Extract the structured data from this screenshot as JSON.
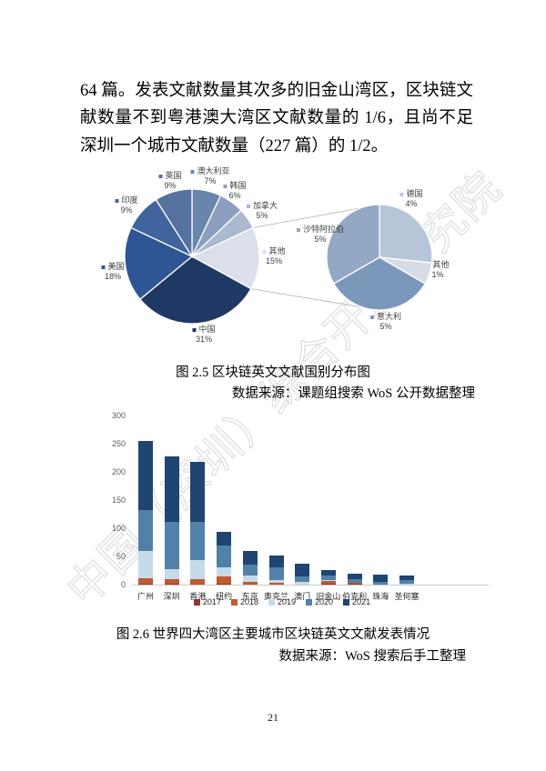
{
  "page": {
    "number": "21",
    "watermark": "中国（深圳）综合开发研究院",
    "paragraph": "64 篇。发表文献数量其次多的旧金山湾区，区块链文献数量不到粤港澳大湾区文献数量的 1/6，且尚不足深圳一个城市文献数量（227 篇）的 1/2。"
  },
  "figures": {
    "fig25": {
      "caption": "图 2.5 区块链英文文献国别分布图",
      "source": "数据来源：课题组搜索 WoS 公开数据整理"
    },
    "fig26": {
      "caption": "图 2.6 世界四大湾区主要城市区块链英文文献发表情况",
      "source": "数据来源：WoS 搜索后手工整理"
    }
  },
  "chart_data": [
    {
      "type": "pie",
      "subtype": "pie-of-pie",
      "title": "图 2.5 区块链英文文献国别分布图",
      "legend_position": "data-labels",
      "main": {
        "slices": [
          {
            "label": "澳大利亚",
            "value": 7,
            "pct_label": "7%",
            "color": "#6886ad"
          },
          {
            "label": "韩国",
            "value": 6,
            "pct_label": "6%",
            "color": "#8a9fc0"
          },
          {
            "label": "加拿大",
            "value": 5,
            "pct_label": "5%",
            "color": "#abb9cf"
          },
          {
            "label": "其他",
            "value": 15,
            "pct_label": "15%",
            "color": "#dadfe9"
          },
          {
            "label": "中国",
            "value": 31,
            "pct_label": "31%",
            "color": "#1f3864"
          },
          {
            "label": "美国",
            "value": 18,
            "pct_label": "18%",
            "color": "#2e5594"
          },
          {
            "label": "印度",
            "value": 9,
            "pct_label": "9%",
            "color": "#40649d"
          },
          {
            "label": "英国",
            "value": 9,
            "pct_label": "9%",
            "color": "#55729f"
          }
        ]
      },
      "secondary": {
        "breakout_of": "其他",
        "slices": [
          {
            "label": "德国",
            "value": 4,
            "pct_label": "4%",
            "color": "#b7c5d9"
          },
          {
            "label": "其他",
            "value": 1,
            "pct_label": "1%",
            "color": "#d6dce6"
          },
          {
            "label": "意大利",
            "value": 5,
            "pct_label": "5%",
            "color": "#7b97ba"
          },
          {
            "label": "沙特阿拉伯",
            "value": 5,
            "pct_label": "5%",
            "color": "#93a8c4"
          }
        ]
      }
    },
    {
      "type": "bar",
      "stacked": true,
      "title": "图 2.6 世界四大湾区主要城市区块链英文文献发表情况",
      "categories": [
        "广州",
        "深圳",
        "香港",
        "纽约",
        "东京",
        "奥克兰",
        "澳门",
        "旧金山",
        "伯克利",
        "珠海",
        "圣何塞"
      ],
      "series": [
        {
          "name": "2017",
          "color": "#8e3a2e",
          "values": [
            2,
            1,
            0,
            2,
            0,
            0,
            0,
            1,
            1,
            0,
            0
          ]
        },
        {
          "name": "2018",
          "color": "#c05a2f",
          "values": [
            9,
            8,
            10,
            13,
            4,
            3,
            0,
            5,
            2,
            0,
            0
          ]
        },
        {
          "name": "2019",
          "color": "#c5dbe9",
          "values": [
            48,
            18,
            33,
            15,
            12,
            5,
            4,
            2,
            0,
            0,
            2
          ]
        },
        {
          "name": "2020",
          "color": "#5181a8",
          "values": [
            74,
            85,
            69,
            39,
            19,
            22,
            11,
            8,
            7,
            5,
            6
          ]
        },
        {
          "name": "2021",
          "color": "#1f4571",
          "values": [
            122,
            115,
            105,
            24,
            24,
            22,
            22,
            10,
            9,
            12,
            8
          ]
        }
      ],
      "totals": [
        255,
        227,
        217,
        93,
        59,
        52,
        37,
        26,
        19,
        17,
        16
      ],
      "ylabel": "",
      "xlabel": "",
      "ylim": [
        0,
        300
      ],
      "yticks": [
        0,
        50,
        100,
        150,
        200,
        250,
        300
      ],
      "grid": false,
      "legend_position": "bottom"
    }
  ]
}
